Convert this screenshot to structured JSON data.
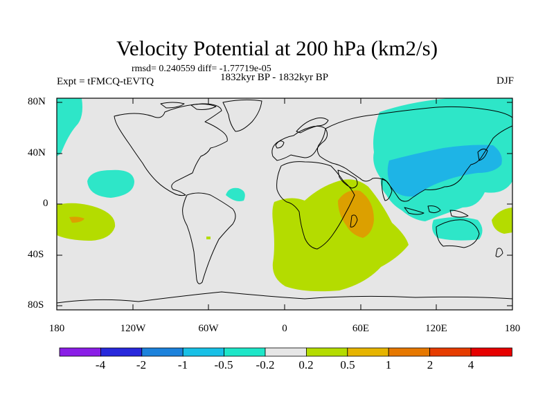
{
  "title": "Velocity Potential at 200 hPa (km2/s)",
  "stats": "rmsd= 0.240559 diff= -1.77719e-05",
  "experiment": "Expt = tFMCQ-tEVTQ",
  "period": "1832kyr BP - 1832kyr BP",
  "season": "DJF",
  "lat_labels": [
    "80N",
    "40N",
    "0",
    "40S",
    "80S"
  ],
  "lon_labels": [
    "180",
    "120W",
    "60W",
    "0",
    "60E",
    "120E",
    "180"
  ],
  "colorbar": {
    "labels": [
      "-4",
      "-2",
      "-1",
      "-0.5",
      "-0.2",
      "0.2",
      "0.5",
      "1",
      "2",
      "4"
    ],
    "colors": [
      "#8a1ee6",
      "#2828dc",
      "#1c82dc",
      "#18c0e6",
      "#1ee6c8",
      "#e6e6e6",
      "#b4dc00",
      "#e6b400",
      "#e67800",
      "#e63c00",
      "#e60000"
    ]
  },
  "map_colors": {
    "background": "#e6e6e6",
    "cyan": "#2ee6c8",
    "blue": "#1eb4e6",
    "yellow_green": "#b4dc00",
    "orange": "#dca000",
    "coast": "#000000"
  }
}
